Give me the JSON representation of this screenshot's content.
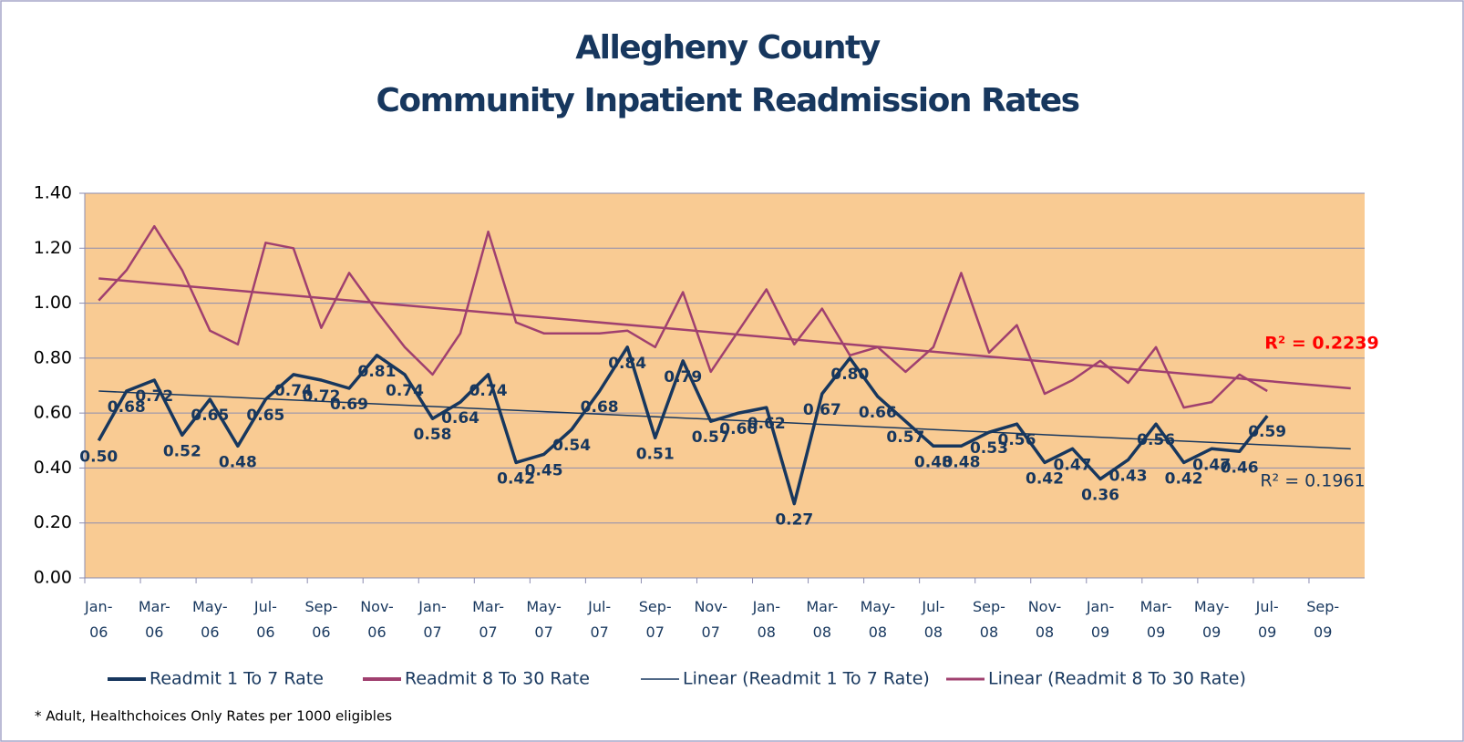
{
  "chart_data": {
    "type": "line",
    "title": [
      "Allegheny County",
      "Community Inpatient Readmission Rates"
    ],
    "categories": [
      "Jan-06",
      null,
      "Mar-06",
      null,
      "May-06",
      null,
      "Jul-06",
      null,
      "Sep-06",
      null,
      "Nov-06",
      null,
      "Jan-07",
      null,
      "Mar-07",
      null,
      "May-07",
      null,
      "Jul-07",
      null,
      "Sep-07",
      null,
      "Nov-07",
      null,
      "Jan-08",
      null,
      "Mar-08",
      null,
      "May-08",
      null,
      "Jul-08",
      null,
      "Sep-08",
      null,
      "Nov-08",
      null,
      "Jan-09",
      null,
      "Mar-09",
      null,
      "May-09",
      null,
      "Jul-09",
      null,
      "Sep-09",
      null
    ],
    "series": [
      {
        "name": "Readmit 1 To 7 Rate",
        "color": "#17375e",
        "values": [
          0.5,
          0.68,
          0.72,
          0.52,
          0.65,
          0.48,
          0.65,
          0.74,
          0.72,
          0.69,
          0.81,
          0.74,
          0.58,
          0.64,
          0.74,
          0.42,
          0.45,
          0.54,
          0.68,
          0.84,
          0.51,
          0.79,
          0.57,
          0.6,
          0.62,
          0.27,
          0.67,
          0.8,
          0.66,
          0.57,
          0.48,
          0.48,
          0.53,
          0.56,
          0.42,
          0.47,
          0.36,
          0.43,
          0.56,
          0.42,
          0.47,
          0.46,
          0.59,
          null,
          null,
          null
        ],
        "value_labels": [
          "0.50",
          "0.68",
          "0.72",
          "0.52",
          "0.65",
          "0.48",
          "0.65",
          "0.74",
          "0.72",
          "0.69",
          "0.81",
          "0.74",
          "0.58",
          "0.64",
          "0.74",
          "0.42",
          "0.45",
          "0.54",
          "0.68",
          "0.84",
          "0.51",
          "0.79",
          "0.57",
          "0.60",
          "0.62",
          "0.27",
          "0.67",
          "0.80",
          "0.66",
          "0.57",
          "0.48",
          "0.48",
          "0.53",
          "0.56",
          "0.42",
          "0.47",
          "0.36",
          "0.43",
          "0.56",
          "0.42",
          "0.47",
          "0.46",
          "0.59",
          null,
          null,
          null
        ]
      },
      {
        "name": "Readmit 8 To 30 Rate",
        "color": "#a0406f",
        "values": [
          1.01,
          1.12,
          1.28,
          1.12,
          0.9,
          0.85,
          1.22,
          1.2,
          0.91,
          1.11,
          0.97,
          0.84,
          0.74,
          0.89,
          1.26,
          0.93,
          0.89,
          0.89,
          0.89,
          0.9,
          0.84,
          1.04,
          0.75,
          0.9,
          1.05,
          0.85,
          0.98,
          0.81,
          0.84,
          0.75,
          0.84,
          1.11,
          0.82,
          0.92,
          0.67,
          0.72,
          0.79,
          0.71,
          0.84,
          0.62,
          0.64,
          0.74,
          0.68,
          null,
          null,
          null
        ]
      }
    ],
    "trendlines": [
      {
        "name": "Linear (Readmit 1 To 7 Rate)",
        "color": "#17375e",
        "x": [
          "Jan-06",
          "Oct-09"
        ],
        "values": [
          0.68,
          0.47
        ],
        "r2_label": "R² = 0.1961",
        "r2_color": "#17375e"
      },
      {
        "name": "Linear (Readmit 8 To 30 Rate)",
        "color": "#a0406f",
        "x": [
          "Jan-06",
          "Oct-09"
        ],
        "values": [
          1.09,
          0.69
        ],
        "r2_label": "R² = 0.2239",
        "r2_color": "#ff0000"
      }
    ],
    "ylim": [
      0,
      1.4
    ],
    "yticks": [
      {
        "value": 0,
        "label": "0.00"
      },
      {
        "value": 0.2,
        "label": "0.20"
      },
      {
        "value": 0.4,
        "label": "0.40"
      },
      {
        "value": 0.6,
        "label": "0.60"
      },
      {
        "value": 0.8,
        "label": "0.80"
      },
      {
        "value": 1.0,
        "label": "1.00"
      },
      {
        "value": 1.2,
        "label": "1.20"
      },
      {
        "value": 1.4,
        "label": "1.40"
      }
    ],
    "grid": true,
    "legend": "bottom",
    "plot_background": "#f9cb93",
    "footnote": "* Adult, Healthchoices Only Rates per 1000 eligibles"
  }
}
